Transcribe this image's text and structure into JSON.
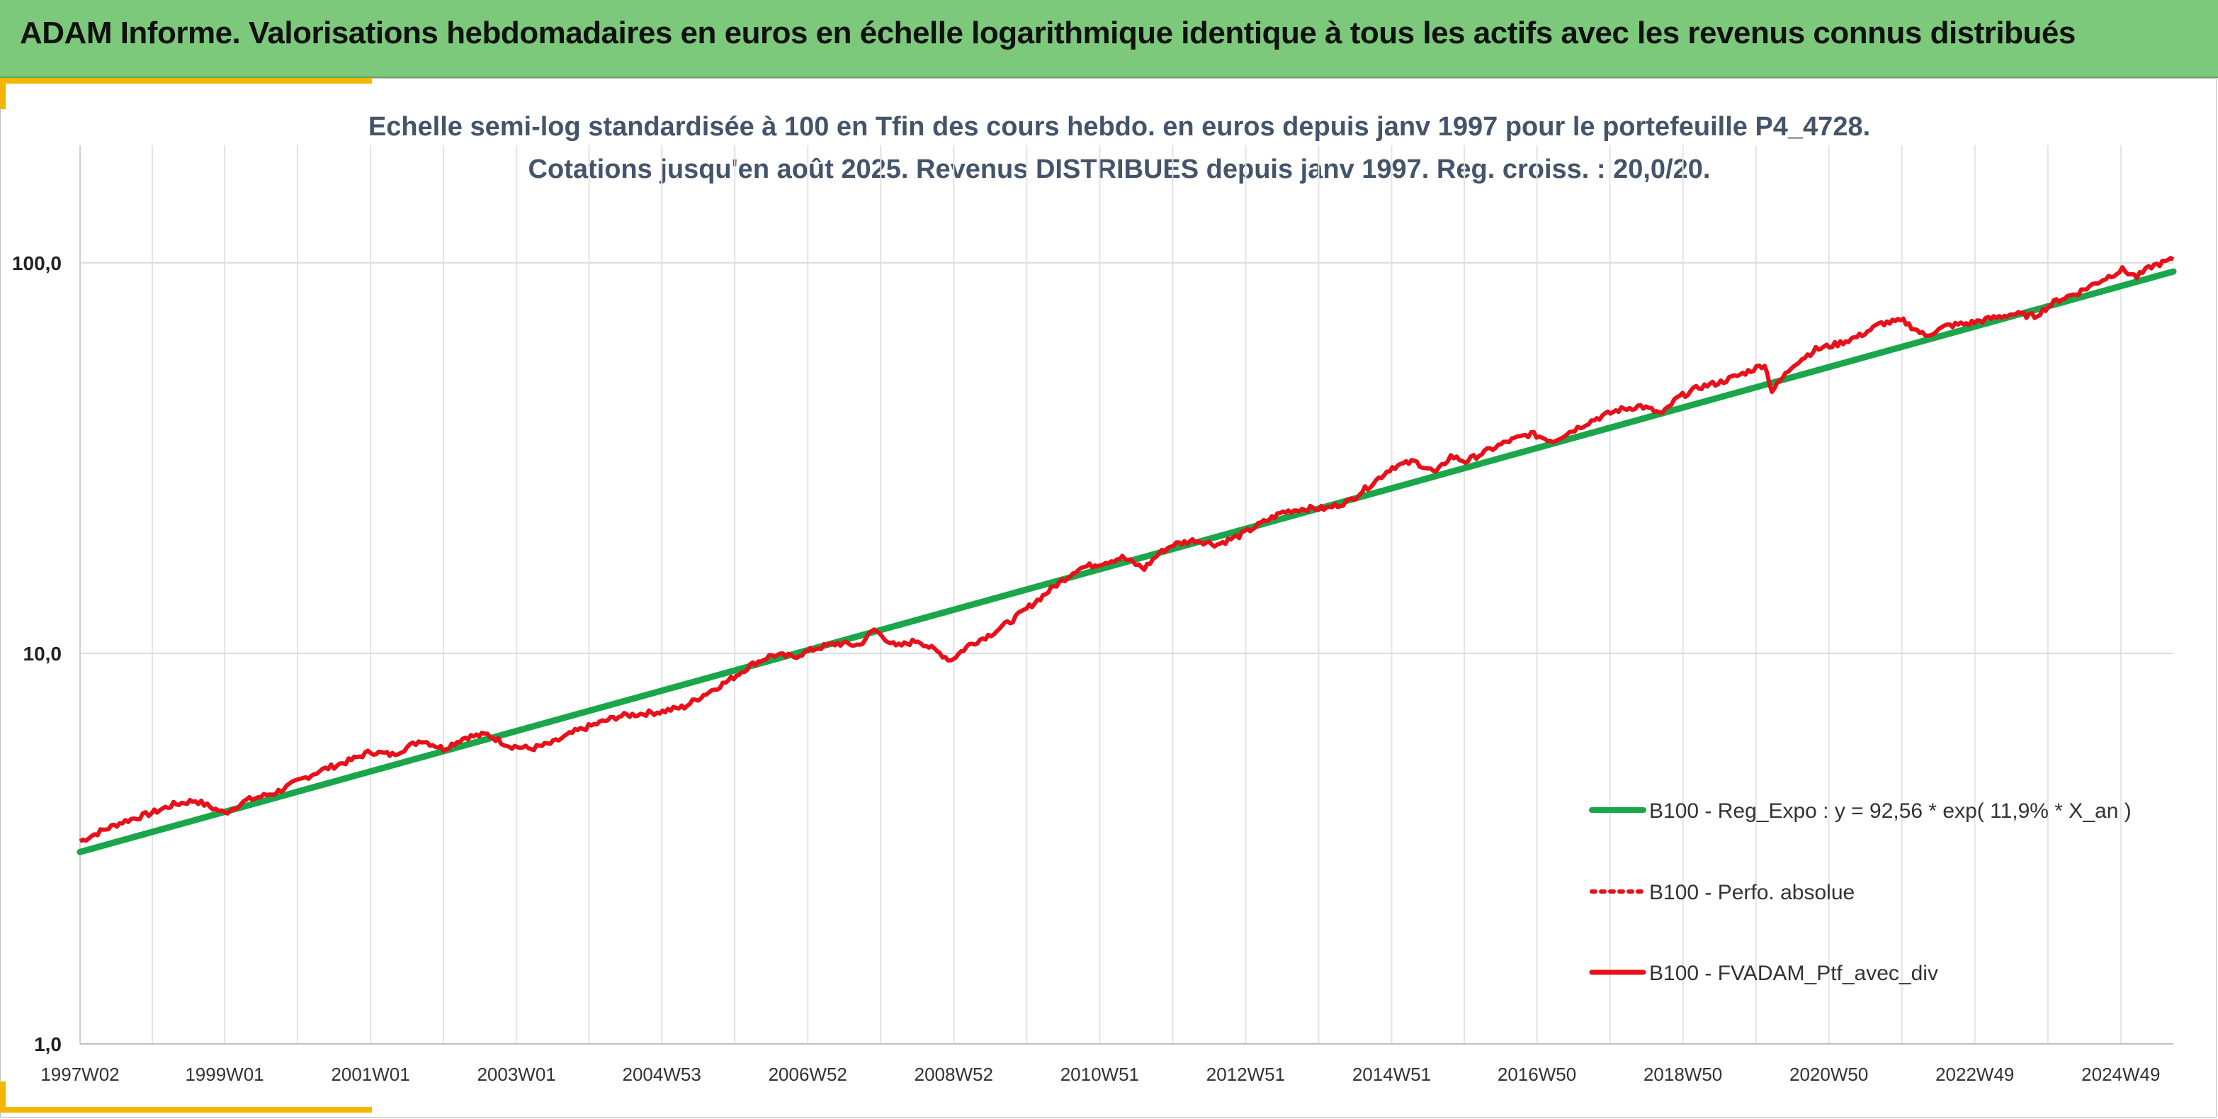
{
  "header": {
    "title": "ADAM Informe. Valorisations hebdomadaires en euros en échelle logarithmique identique à tous les actifs avec les revenus connus distribués"
  },
  "colors": {
    "banner": "#7dc97b",
    "accent": "#f2b705",
    "regression": "#1aa64a",
    "portfolio": "#e8101a",
    "subtitle": "#44546a"
  },
  "chart_data": {
    "type": "line",
    "title": "Echelle semi-log standardisée à 100 en Tfin des cours hebdo. en euros depuis janv 1997 pour le portefeuille P4_4728.",
    "subtitle": "Cotations jusqu'en août 2025. Revenus DISTRIBUES depuis janv 1997. Reg. croiss. : 20,0/20.",
    "y_scale": "log",
    "ylim": [
      1,
      200
    ],
    "xlim": [
      1997.02,
      2025.7
    ],
    "y_ticks": [
      {
        "value": 1,
        "label": "1,0"
      },
      {
        "value": 10,
        "label": "10,0"
      },
      {
        "value": 100,
        "label": "100,0"
      }
    ],
    "x_ticks": [
      {
        "value": 1997.02,
        "label": "1997W02"
      },
      {
        "value": 1999.0,
        "label": "1999W01"
      },
      {
        "value": 2001.0,
        "label": "2001W01"
      },
      {
        "value": 2003.0,
        "label": "2003W01"
      },
      {
        "value": 2004.99,
        "label": "2004W53"
      },
      {
        "value": 2006.99,
        "label": "2006W52"
      },
      {
        "value": 2008.99,
        "label": "2008W52"
      },
      {
        "value": 2010.99,
        "label": "2010W51"
      },
      {
        "value": 2012.99,
        "label": "2012W51"
      },
      {
        "value": 2014.99,
        "label": "2014W51"
      },
      {
        "value": 2016.98,
        "label": "2016W50"
      },
      {
        "value": 2018.98,
        "label": "2018W50"
      },
      {
        "value": 2020.98,
        "label": "2020W50"
      },
      {
        "value": 2022.98,
        "label": "2022W49"
      },
      {
        "value": 2024.98,
        "label": "2024W49"
      }
    ],
    "grid": "vertical and horizontal",
    "legend_position": "right",
    "series": [
      {
        "name": "B100 - Reg_Expo : y = 92,56 * exp( 11,9% *  X_an )",
        "style": "solid-green",
        "x": [
          1997.02,
          2025.7
        ],
        "values": [
          3.1,
          95.0
        ]
      },
      {
        "name": "B100 - Perfo. absolue",
        "style": "dotted-red",
        "x": [],
        "values": []
      },
      {
        "name": "B100 - FVADAM_Ptf_avec_div",
        "style": "solid-red",
        "x": [
          1997.02,
          1997.3,
          1997.6,
          1998.0,
          1998.3,
          1998.6,
          1999.0,
          1999.3,
          1999.7,
          2000.0,
          2000.3,
          2000.7,
          2001.0,
          2001.3,
          2001.7,
          2002.0,
          2002.3,
          2002.6,
          2002.9,
          2003.2,
          2003.5,
          2003.8,
          2004.1,
          2004.4,
          2004.7,
          2005.0,
          2005.3,
          2005.6,
          2005.9,
          2006.2,
          2006.5,
          2006.8,
          2007.1,
          2007.4,
          2007.7,
          2007.9,
          2008.2,
          2008.5,
          2008.8,
          2008.95,
          2009.2,
          2009.5,
          2009.8,
          2010.1,
          2010.4,
          2010.7,
          2011.0,
          2011.3,
          2011.6,
          2011.8,
          2012.0,
          2012.3,
          2012.6,
          2012.9,
          2013.2,
          2013.5,
          2013.8,
          2014.1,
          2014.4,
          2014.7,
          2015.0,
          2015.3,
          2015.6,
          2015.8,
          2016.0,
          2016.3,
          2016.6,
          2016.9,
          2017.2,
          2017.5,
          2017.8,
          2018.1,
          2018.4,
          2018.7,
          2018.9,
          2019.2,
          2019.5,
          2019.8,
          2020.1,
          2020.2,
          2020.5,
          2020.8,
          2021.1,
          2021.4,
          2021.7,
          2022.0,
          2022.3,
          2022.6,
          2022.9,
          2023.2,
          2023.5,
          2023.8,
          2024.1,
          2024.4,
          2024.7,
          2025.0,
          2025.2,
          2025.4,
          2025.7
        ],
        "values": [
          3.3,
          3.5,
          3.7,
          3.9,
          4.1,
          4.2,
          3.9,
          4.2,
          4.4,
          4.7,
          5.0,
          5.3,
          5.6,
          5.5,
          6.0,
          5.7,
          6.1,
          6.2,
          5.8,
          5.7,
          5.9,
          6.3,
          6.6,
          6.9,
          7.0,
          7.1,
          7.3,
          7.9,
          8.5,
          9.3,
          9.9,
          9.8,
          10.3,
          10.6,
          10.5,
          11.5,
          10.4,
          10.8,
          10.0,
          9.6,
          10.5,
          11.2,
          12.2,
          13.5,
          15.0,
          16.5,
          17.0,
          17.6,
          16.5,
          18.0,
          19.0,
          19.5,
          19.0,
          20.0,
          21.5,
          23.0,
          23.5,
          23.5,
          24.5,
          27.0,
          30.0,
          31.0,
          29.0,
          32.0,
          31.0,
          33.0,
          35.0,
          36.5,
          35.0,
          37.5,
          40.0,
          42.0,
          43.0,
          41.0,
          45.0,
          48.0,
          49.5,
          52.0,
          55.0,
          47.0,
          55.0,
          60.0,
          62.0,
          65.0,
          70.0,
          71.0,
          65.0,
          69.0,
          70.0,
          72.0,
          74.0,
          73.0,
          80.0,
          84.0,
          90.0,
          96.0,
          92.0,
          98.0,
          102.0
        ]
      }
    ]
  }
}
